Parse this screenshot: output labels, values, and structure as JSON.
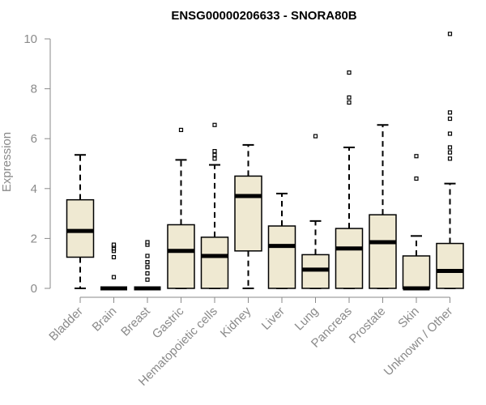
{
  "chart_data": {
    "type": "boxplot",
    "title": "ENSG00000206633 - SNORA80B",
    "xlabel": "",
    "ylabel": "Expression",
    "ylim": [
      0,
      10
    ],
    "yticks": [
      0,
      2,
      4,
      6,
      8,
      10
    ],
    "grid": false,
    "box_color": "#EFE9D2",
    "series": [
      {
        "name": "Bladder",
        "min": 0,
        "q1": 1.25,
        "median": 2.3,
        "q3": 3.55,
        "max": 5.35,
        "outliers": []
      },
      {
        "name": "Brain",
        "min": 0,
        "q1": 0,
        "median": 0,
        "q3": 0,
        "max": 0,
        "outliers": [
          0.45,
          1.25,
          1.5,
          1.6,
          1.7,
          1.75
        ]
      },
      {
        "name": "Breast",
        "min": 0,
        "q1": 0,
        "median": 0,
        "q3": 0,
        "max": 0,
        "outliers": [
          0.35,
          0.6,
          0.85,
          1.05,
          1.3,
          1.75,
          1.85
        ]
      },
      {
        "name": "Gastric",
        "min": 0,
        "q1": 0,
        "median": 1.5,
        "q3": 2.55,
        "max": 5.15,
        "outliers": [
          6.35
        ]
      },
      {
        "name": "Hematopoietic cells",
        "min": 0,
        "q1": 0,
        "median": 1.3,
        "q3": 2.05,
        "max": 4.95,
        "outliers": [
          5.2,
          5.35,
          5.5,
          6.55
        ]
      },
      {
        "name": "Kidney",
        "min": 0,
        "q1": 1.5,
        "median": 3.7,
        "q3": 4.5,
        "max": 5.75,
        "outliers": []
      },
      {
        "name": "Liver",
        "min": 0,
        "q1": 0,
        "median": 1.7,
        "q3": 2.5,
        "max": 3.8,
        "outliers": []
      },
      {
        "name": "Lung",
        "min": 0,
        "q1": 0,
        "median": 0.75,
        "q3": 1.35,
        "max": 2.7,
        "outliers": [
          6.1
        ]
      },
      {
        "name": "Pancreas",
        "min": 0,
        "q1": 0,
        "median": 1.6,
        "q3": 2.4,
        "max": 5.65,
        "outliers": [
          7.45,
          7.65,
          8.65
        ]
      },
      {
        "name": "Prostate",
        "min": 0,
        "q1": 0,
        "median": 1.85,
        "q3": 2.95,
        "max": 6.55,
        "outliers": []
      },
      {
        "name": "Skin",
        "min": 0,
        "q1": 0,
        "median": 0,
        "q3": 1.3,
        "max": 2.1,
        "outliers": [
          4.4,
          5.3
        ]
      },
      {
        "name": "Unknown / Other",
        "min": 0,
        "q1": 0,
        "median": 0.7,
        "q3": 1.8,
        "max": 4.2,
        "outliers": [
          5.2,
          5.45,
          5.65,
          6.2,
          6.8,
          7.05,
          10.2
        ]
      }
    ]
  }
}
